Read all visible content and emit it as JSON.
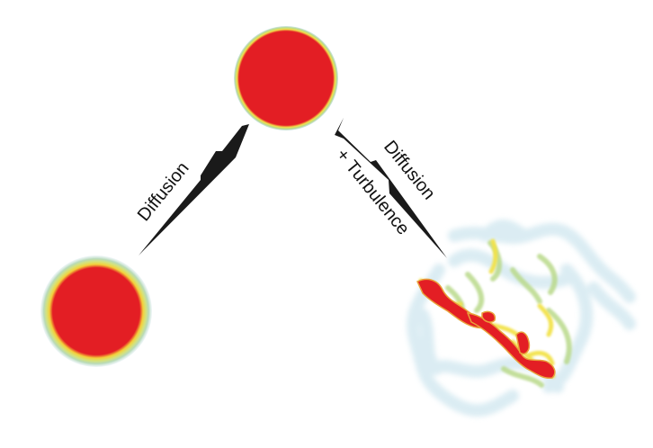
{
  "diagram": {
    "left_arrow_label": "Diffusion",
    "right_arrow_label_line1": "Diffusion",
    "right_arrow_label_line2": "+ Turbulence",
    "colors": {
      "core": "#e31e24",
      "edge_yellow": "#f2e24a",
      "edge_green": "#b9d98a",
      "edge_blue": "#cfe6ef",
      "arrow": "#1a1a1a"
    }
  }
}
